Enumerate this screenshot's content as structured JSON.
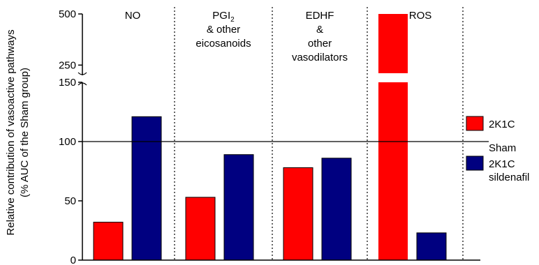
{
  "chart_data": {
    "type": "bar",
    "ylabel_line1": "Relative contribution of vasoactive pathways",
    "ylabel_line2": "(% AUC of the Sham group)",
    "groups": [
      {
        "lines": [
          "NO"
        ]
      },
      {
        "lines": [
          "PGI2",
          "& other",
          "eicosanoids"
        ]
      },
      {
        "lines": [
          "EDHF",
          "&",
          "other",
          "vasodilators"
        ]
      },
      {
        "lines": [
          "ROS"
        ]
      }
    ],
    "pgi_main": "PGI",
    "pgi_sub": "2",
    "series": [
      {
        "name": "2K1C",
        "color": "#ff0000",
        "values": [
          32,
          53,
          78,
          500
        ]
      },
      {
        "name": "2K1C sildenafil",
        "color": "#000080",
        "values": [
          121,
          89,
          86,
          23
        ]
      }
    ],
    "reference": {
      "label": "Sham",
      "value": 100
    },
    "y_ticks_lower": [
      "0",
      "50",
      "100",
      "150"
    ],
    "y_ticks_upper": [
      "250",
      "500"
    ],
    "ylim_lower": [
      0,
      150
    ],
    "ylim_upper": [
      200,
      500
    ],
    "legend": [
      {
        "label_line1": "2K1C",
        "label_line2": "",
        "color": "#ff0000"
      },
      {
        "label_line1": "2K1C",
        "label_line2": "sildenafil",
        "color": "#000080"
      }
    ]
  }
}
